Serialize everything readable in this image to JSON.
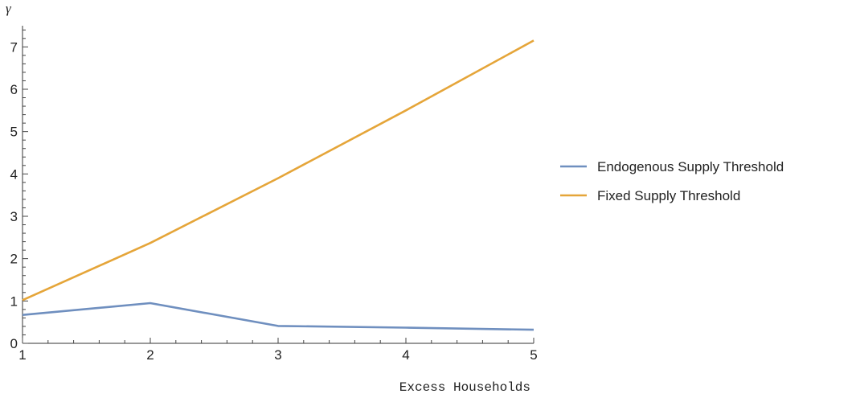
{
  "chart_data": {
    "type": "line",
    "xlabel": "Excess Households",
    "ylabel": "γ",
    "xlim": [
      1,
      5
    ],
    "ylim": [
      0,
      7.5
    ],
    "x_ticks": [
      1,
      2,
      3,
      4,
      5
    ],
    "y_ticks": [
      0,
      1,
      2,
      3,
      4,
      5,
      6,
      7
    ],
    "grid": false,
    "legend_position": "right",
    "x": [
      1,
      2,
      3,
      4,
      5
    ],
    "series": [
      {
        "name": "Endogenous Supply Threshold",
        "color": "#6f8fbf",
        "values": [
          0.67,
          0.95,
          0.41,
          0.37,
          0.32
        ]
      },
      {
        "name": "Fixed Supply Threshold",
        "color": "#e5a539",
        "values": [
          1.02,
          2.37,
          3.9,
          5.5,
          7.15
        ]
      }
    ]
  }
}
